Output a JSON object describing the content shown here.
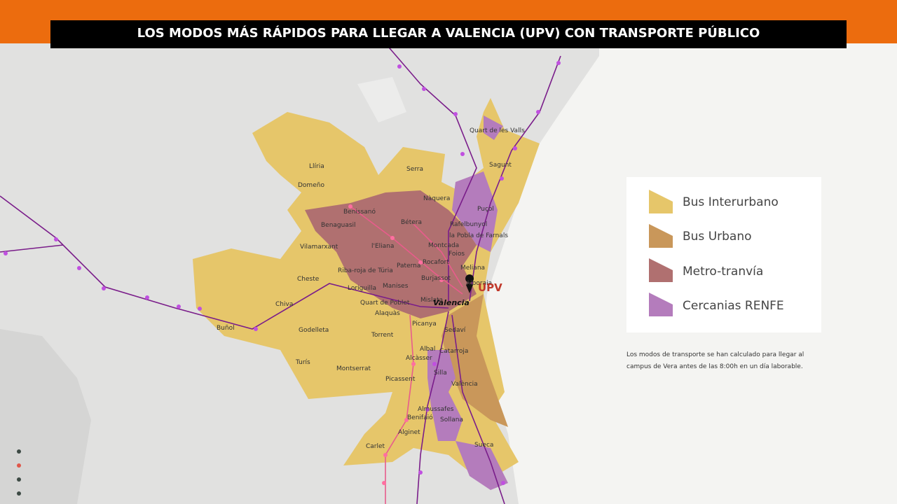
{
  "header": {
    "title": "LOS MODOS MÁS RÁPIDOS PARA LLEGAR A VALENCIA (UPV) CON TRANSPORTE PÚBLICO"
  },
  "legend": [
    "Bus Interurbano",
    "Bus Urbano",
    "Metro-tranvía",
    "Cercanias RENFE"
  ],
  "note": [
    "Los modos de transporte se han calculado para llegar al",
    "campus de Vera antes de las 8:00h en un día laborable."
  ],
  "places": [
    "Llíria",
    "Domeño",
    "Serra",
    "Nàquera",
    "Sagunt",
    "Quart de les Valls",
    "Puçol",
    "Bétera",
    "Benissanó",
    "Benaguasil",
    "Rafelbunyol",
    "la Pobla de Farnals",
    "Vilamarxant",
    "l'Eliana",
    "Montcada",
    "Foios",
    "Paterna",
    "Rocafort",
    "Meliana",
    "Riba-roja de Túria",
    "Burjassot",
    "Manises",
    "Cheste",
    "Loriguilla",
    "Alboraia",
    "Quart de Poblet",
    "Mislata",
    "Valencia",
    "UPV",
    "Chiva",
    "Alaquàs",
    "Picanya",
    "Sedaví",
    "Buñol",
    "Godelleta",
    "Torrent",
    "Albal",
    "Catarroja",
    "Alcàsser",
    "Turís",
    "Montserrat",
    "Silla",
    "Picassent",
    "València",
    "Almussafes",
    "Benifaió",
    "Sollana",
    "Alginet",
    "Sueca",
    "Carlet"
  ]
}
